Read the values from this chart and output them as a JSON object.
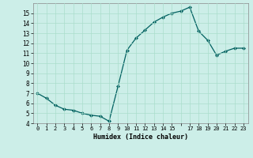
{
  "x": [
    0,
    1,
    2,
    3,
    4,
    5,
    6,
    7,
    8,
    9,
    10,
    11,
    12,
    13,
    14,
    15,
    16,
    17,
    18,
    19,
    20,
    21,
    22,
    23
  ],
  "y": [
    7.0,
    6.5,
    5.8,
    5.4,
    5.3,
    5.0,
    4.8,
    4.7,
    4.2,
    7.7,
    11.3,
    12.5,
    13.3,
    14.1,
    14.6,
    15.0,
    15.2,
    15.6,
    13.2,
    12.3,
    10.8,
    11.2,
    11.5,
    11.5
  ],
  "xlim": [
    -0.5,
    23.5
  ],
  "ylim": [
    4,
    16
  ],
  "yticks": [
    4,
    5,
    6,
    7,
    8,
    9,
    10,
    11,
    12,
    13,
    14,
    15
  ],
  "xlabel": "Humidex (Indice chaleur)",
  "line_color": "#006060",
  "marker_color": "#006060",
  "bg_color": "#cceee8",
  "grid_color": "#aaddcc",
  "spine_color": "#888888"
}
